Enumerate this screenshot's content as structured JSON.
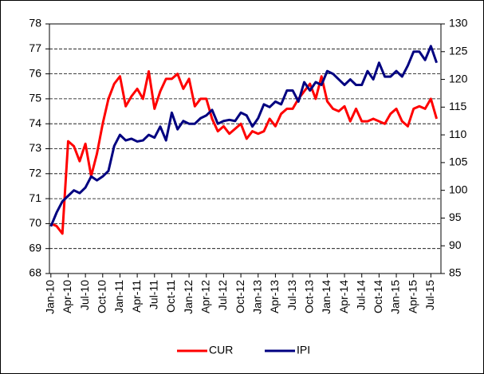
{
  "chart_data": {
    "type": "line",
    "categories": [
      "Jan-10",
      null,
      null,
      "Apr-10",
      null,
      null,
      "Jul-10",
      null,
      null,
      "Oct-10",
      null,
      null,
      "Jan-11",
      null,
      null,
      "Apr-11",
      null,
      null,
      "Jul-11",
      null,
      null,
      "Oct-11",
      null,
      null,
      "Jan-12",
      null,
      null,
      "Apr-12",
      null,
      null,
      "Jul-12",
      null,
      null,
      "Oct-12",
      null,
      null,
      "Jan-13",
      null,
      null,
      "Apr-13",
      null,
      null,
      "Jul-13",
      null,
      null,
      "Oct-13",
      null,
      null,
      "Jan-14",
      null,
      null,
      "Apr-14",
      null,
      null,
      "Jul-14",
      null,
      null,
      "Oct-14",
      null,
      null,
      "Jan-15",
      null,
      null,
      "Apr-15",
      null,
      null,
      "Jul-15",
      null
    ],
    "series": [
      {
        "name": "CUR",
        "color": "#ff0000",
        "values": [
          70.0,
          69.9,
          69.6,
          73.3,
          73.1,
          72.5,
          73.2,
          71.9,
          72.8,
          74.0,
          75.0,
          75.6,
          75.9,
          74.7,
          75.1,
          75.4,
          75.0,
          76.1,
          74.6,
          75.3,
          75.8,
          75.8,
          76.0,
          75.4,
          75.8,
          74.7,
          75.0,
          75.0,
          74.2,
          73.7,
          73.9,
          73.6,
          73.8,
          74.0,
          73.4,
          73.7,
          73.6,
          73.7,
          74.2,
          73.9,
          74.4,
          74.6,
          74.6,
          75.0,
          75.3,
          75.6,
          75.0,
          75.9,
          74.9,
          74.6,
          74.5,
          74.7,
          74.1,
          74.6,
          74.1,
          74.1,
          74.2,
          74.1,
          74.0,
          74.4,
          74.6,
          74.1,
          73.9,
          74.6,
          74.7,
          74.6,
          75.0,
          74.2
        ]
      },
      {
        "name": "IPI",
        "color": "#000080",
        "axis": "y2",
        "values": [
          93.5,
          96,
          98,
          99,
          100,
          99.5,
          100.5,
          102.5,
          101.8,
          102.5,
          103.5,
          108,
          110,
          109,
          109.3,
          108.8,
          109,
          110,
          109.5,
          111.5,
          109,
          114,
          111,
          112.5,
          112,
          112,
          113,
          113.5,
          114.5,
          112,
          112.5,
          112.7,
          112.5,
          114,
          113.5,
          111.5,
          113,
          115.5,
          115,
          116,
          115.5,
          118,
          118,
          116,
          119.5,
          118,
          119.5,
          119,
          121.5,
          121,
          120,
          119,
          120,
          119,
          119,
          121.5,
          120,
          123,
          120.5,
          120.5,
          121.5,
          120.5,
          122.5,
          125,
          125,
          123.5,
          126,
          123
        ]
      }
    ],
    "ylim": [
      68,
      78
    ],
    "yticks": [
      68,
      69,
      70,
      71,
      72,
      73,
      74,
      75,
      76,
      77,
      78
    ],
    "y2lim": [
      85,
      130
    ],
    "y2ticks": [
      85,
      90,
      95,
      100,
      105,
      110,
      115,
      120,
      125,
      130
    ],
    "grid": true
  }
}
